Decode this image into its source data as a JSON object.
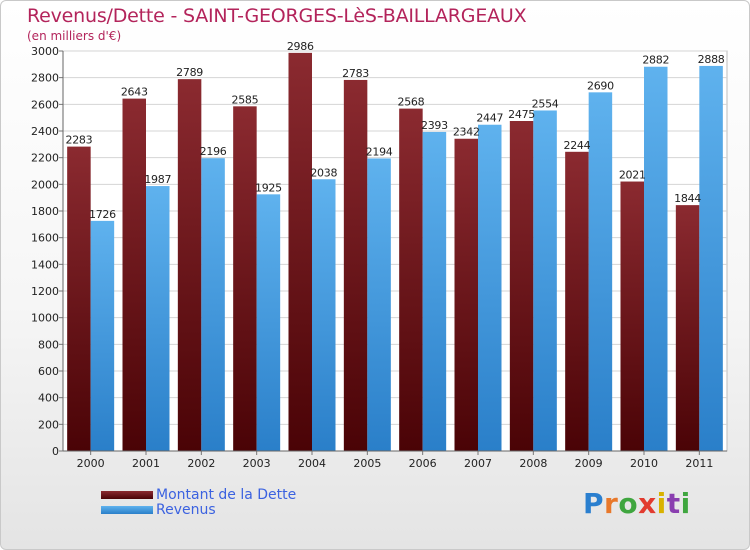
{
  "chart_data": {
    "type": "bar",
    "title": "Revenus/Dette - SAINT-GEORGES-LèS-BAILLARGEAUX",
    "subtitle": "(en milliers d'€)",
    "categories": [
      "2000",
      "2001",
      "2002",
      "2003",
      "2004",
      "2005",
      "2006",
      "2007",
      "2008",
      "2009",
      "2010",
      "2011"
    ],
    "series": [
      {
        "name": "Montant de la Dette",
        "color": "#7a1418",
        "values": [
          2283,
          2643,
          2789,
          2585,
          2986,
          2783,
          2568,
          2342,
          2475,
          2244,
          2021,
          1844
        ]
      },
      {
        "name": "Revenus",
        "color": "#3b9ae0",
        "values": [
          1726,
          1987,
          2196,
          1925,
          2038,
          2194,
          2393,
          2447,
          2554,
          2690,
          2882,
          2888
        ]
      }
    ],
    "yticks": [
      0,
      200,
      400,
      600,
      800,
      1000,
      1200,
      1400,
      1600,
      1800,
      2000,
      2200,
      2400,
      2600,
      2800,
      3000
    ],
    "ylim": [
      0,
      3000
    ],
    "xlabel": "",
    "ylabel": "",
    "grid": true,
    "legend_position": "bottom-left"
  },
  "logo": {
    "letters": [
      "P",
      "r",
      "o",
      "x",
      "i",
      "t",
      "i"
    ]
  }
}
